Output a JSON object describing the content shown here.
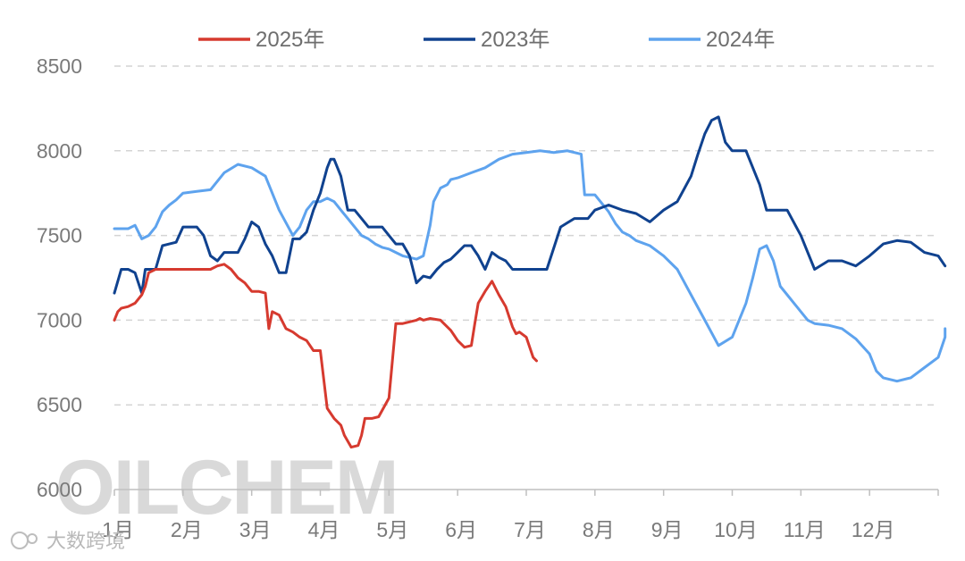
{
  "chart_data": {
    "type": "line",
    "title": "",
    "xlabel": "",
    "ylabel": "",
    "ylim": [
      6000,
      8500
    ],
    "yticks": [
      "6000",
      "6500",
      "7000",
      "7500",
      "8000",
      "8500"
    ],
    "categories": [
      "1月",
      "2月",
      "3月",
      "4月",
      "5月",
      "6月",
      "7月",
      "8月",
      "9月",
      "10月",
      "11月",
      "12月"
    ],
    "legend_position": "top-center",
    "grid": "horizontal-dashed",
    "series": [
      {
        "name": "2025年",
        "color": "#d63a2f",
        "x": [
          1.0,
          1.05,
          1.1,
          1.2,
          1.3,
          1.4,
          1.45,
          1.5,
          1.6,
          1.8,
          2.0,
          2.2,
          2.4,
          2.5,
          2.6,
          2.7,
          2.8,
          2.9,
          3.0,
          3.1,
          3.2,
          3.25,
          3.3,
          3.4,
          3.5,
          3.6,
          3.7,
          3.8,
          3.9,
          4.0,
          4.1,
          4.2,
          4.3,
          4.35,
          4.45,
          4.55,
          4.6,
          4.65,
          4.7,
          4.75,
          4.85,
          5.0,
          5.1,
          5.2,
          5.3,
          5.4,
          5.45,
          5.5,
          5.6,
          5.75,
          5.9,
          6.0,
          6.1,
          6.2,
          6.25,
          6.3,
          6.4,
          6.5,
          6.6,
          6.7,
          6.75,
          6.8,
          6.85,
          6.9,
          7.0,
          7.1,
          7.15
        ],
        "values": [
          7000,
          7050,
          7070,
          7080,
          7100,
          7150,
          7200,
          7280,
          7300,
          7300,
          7300,
          7300,
          7300,
          7320,
          7330,
          7300,
          7250,
          7220,
          7170,
          7170,
          7160,
          6950,
          7050,
          7030,
          6950,
          6930,
          6900,
          6880,
          6820,
          6820,
          6480,
          6420,
          6380,
          6320,
          6250,
          6260,
          6320,
          6420,
          6420,
          6420,
          6430,
          6540,
          6980,
          6980,
          6990,
          7000,
          7010,
          7000,
          7010,
          7000,
          6940,
          6880,
          6840,
          6850,
          6980,
          7100,
          7170,
          7230,
          7150,
          7080,
          7020,
          6960,
          6920,
          6930,
          6900,
          6780,
          6760
        ]
      },
      {
        "name": "2023年",
        "color": "#10428f",
        "x": [
          1.0,
          1.1,
          1.2,
          1.3,
          1.4,
          1.45,
          1.5,
          1.6,
          1.7,
          1.8,
          1.9,
          2.0,
          2.1,
          2.2,
          2.3,
          2.4,
          2.5,
          2.6,
          2.7,
          2.8,
          2.9,
          3.0,
          3.1,
          3.2,
          3.3,
          3.4,
          3.5,
          3.6,
          3.7,
          3.8,
          3.9,
          4.0,
          4.1,
          4.15,
          4.2,
          4.3,
          4.4,
          4.5,
          4.6,
          4.7,
          4.8,
          4.9,
          5.0,
          5.1,
          5.2,
          5.3,
          5.4,
          5.5,
          5.6,
          5.7,
          5.8,
          5.9,
          6.0,
          6.1,
          6.2,
          6.3,
          6.4,
          6.5,
          6.6,
          6.7,
          6.8,
          6.9,
          7.0,
          7.1,
          7.2,
          7.3,
          7.5,
          7.7,
          7.9,
          8.0,
          8.2,
          8.4,
          8.6,
          8.8,
          9.0,
          9.2,
          9.4,
          9.5,
          9.6,
          9.7,
          9.8,
          9.9,
          10.0,
          10.2,
          10.4,
          10.5,
          10.6,
          10.8,
          11.0,
          11.1,
          11.2,
          11.4,
          11.6,
          11.8,
          12.0,
          12.2,
          12.4,
          12.6,
          12.8,
          13.0,
          13.1
        ],
        "values": [
          7160,
          7300,
          7300,
          7280,
          7160,
          7300,
          7300,
          7300,
          7440,
          7450,
          7460,
          7550,
          7550,
          7550,
          7500,
          7380,
          7350,
          7400,
          7400,
          7400,
          7480,
          7580,
          7550,
          7450,
          7380,
          7280,
          7280,
          7480,
          7480,
          7520,
          7650,
          7750,
          7900,
          7950,
          7950,
          7850,
          7650,
          7650,
          7600,
          7550,
          7550,
          7550,
          7500,
          7450,
          7450,
          7380,
          7220,
          7260,
          7250,
          7300,
          7340,
          7360,
          7400,
          7440,
          7440,
          7380,
          7300,
          7400,
          7370,
          7350,
          7300,
          7300,
          7300,
          7300,
          7300,
          7300,
          7550,
          7600,
          7600,
          7650,
          7680,
          7650,
          7630,
          7580,
          7650,
          7700,
          7850,
          7980,
          8100,
          8180,
          8200,
          8050,
          8000,
          8000,
          7800,
          7650,
          7650,
          7650,
          7500,
          7400,
          7300,
          7350,
          7350,
          7320,
          7380,
          7450,
          7470,
          7460,
          7400,
          7380,
          7320
        ]
      },
      {
        "name": "2024年",
        "color": "#5ea3ee",
        "x": [
          1.0,
          1.1,
          1.2,
          1.3,
          1.4,
          1.5,
          1.6,
          1.7,
          1.8,
          1.9,
          2.0,
          2.2,
          2.4,
          2.6,
          2.8,
          3.0,
          3.2,
          3.4,
          3.6,
          3.7,
          3.8,
          3.9,
          4.0,
          4.1,
          4.2,
          4.3,
          4.4,
          4.5,
          4.6,
          4.7,
          4.8,
          4.9,
          5.0,
          5.1,
          5.2,
          5.3,
          5.4,
          5.5,
          5.6,
          5.65,
          5.75,
          5.85,
          5.9,
          6.0,
          6.2,
          6.4,
          6.6,
          6.8,
          7.0,
          7.2,
          7.4,
          7.6,
          7.8,
          7.85,
          7.9,
          8.0,
          8.2,
          8.3,
          8.4,
          8.5,
          8.6,
          8.8,
          9.0,
          9.2,
          9.4,
          9.6,
          9.8,
          10.0,
          10.1,
          10.2,
          10.3,
          10.4,
          10.5,
          10.6,
          10.7,
          10.8,
          10.9,
          11.0,
          11.1,
          11.2,
          11.4,
          11.6,
          11.8,
          12.0,
          12.1,
          12.2,
          12.4,
          12.6,
          12.8,
          13.0,
          13.2,
          13.4
        ],
        "values": [
          7540,
          7540,
          7540,
          7560,
          7480,
          7500,
          7550,
          7640,
          7680,
          7710,
          7750,
          7760,
          7770,
          7870,
          7920,
          7900,
          7850,
          7650,
          7500,
          7550,
          7650,
          7700,
          7700,
          7720,
          7700,
          7650,
          7600,
          7550,
          7500,
          7480,
          7450,
          7430,
          7420,
          7400,
          7380,
          7370,
          7360,
          7380,
          7560,
          7700,
          7780,
          7800,
          7830,
          7840,
          7870,
          7900,
          7950,
          7980,
          7990,
          8000,
          7990,
          8000,
          7980,
          7740,
          7740,
          7740,
          7640,
          7570,
          7520,
          7500,
          7470,
          7440,
          7380,
          7300,
          7150,
          7000,
          6850,
          6900,
          7000,
          7100,
          7250,
          7420,
          7440,
          7350,
          7200,
          7150,
          7100,
          7050,
          7000,
          6980,
          6970,
          6950,
          6890,
          6800,
          6700,
          6660,
          6640,
          6660,
          6720,
          6780,
          6900,
          6950
        ]
      }
    ]
  },
  "watermark": {
    "text": "OILCHEM",
    "brand_text": "大数跨境"
  }
}
